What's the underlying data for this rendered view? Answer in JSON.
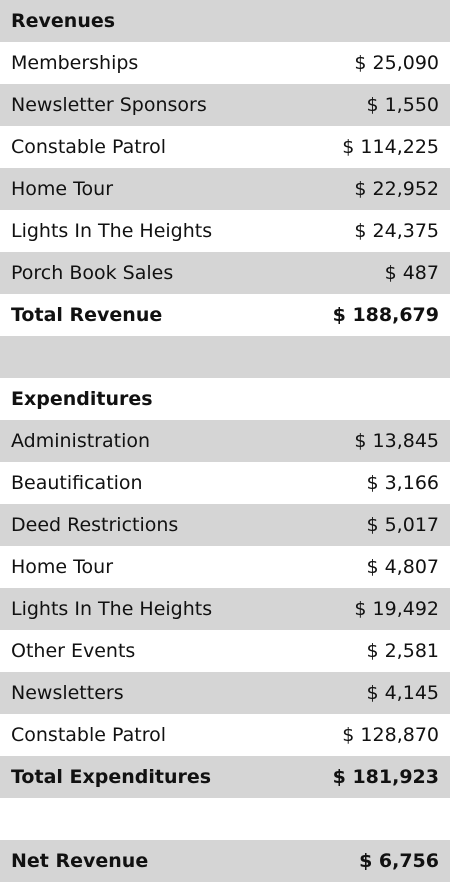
{
  "revenues": {
    "title": "Revenues",
    "rows": [
      [
        "Memberships",
        "$ 25,090"
      ],
      [
        "Newsletter Sponsors",
        "$ 1,550"
      ],
      [
        "Constable Patrol",
        "$ 114,225"
      ],
      [
        "Home Tour",
        "$ 22,952"
      ],
      [
        "Lights In The Heights",
        "$ 24,375"
      ],
      [
        "Porch Book Sales",
        "$ 487"
      ]
    ],
    "total": [
      "Total Revenue",
      "$ 188,679"
    ]
  },
  "expenditures": {
    "title": "Expenditures",
    "rows": [
      [
        "Administration",
        "$ 13,845"
      ],
      [
        "Beautification",
        "$ 3,166"
      ],
      [
        "Deed Restrictions",
        "$ 5,017"
      ],
      [
        "Home Tour",
        "$ 4,807"
      ],
      [
        "Lights In The Heights",
        "$ 19,492"
      ],
      [
        "Other Events",
        "$ 2,581"
      ],
      [
        "Newsletters",
        "$ 4,145"
      ],
      [
        "Constable Patrol",
        "$ 128,870"
      ]
    ],
    "total": [
      "Total Expenditures",
      "$ 181,923"
    ]
  },
  "net_revenue": [
    "Net Revenue",
    "$ 6,756"
  ]
}
